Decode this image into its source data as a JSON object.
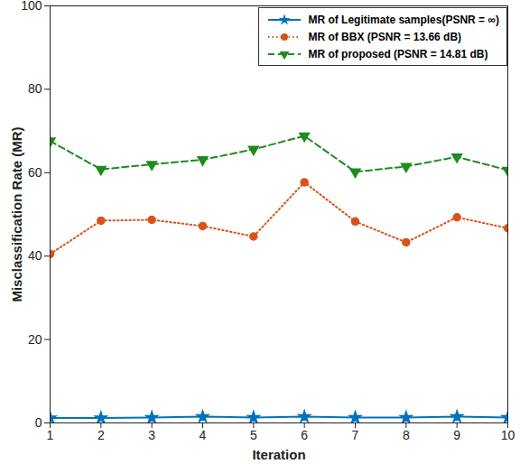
{
  "chart_data": {
    "type": "line",
    "x": [
      1,
      2,
      3,
      4,
      5,
      6,
      7,
      8,
      9,
      10
    ],
    "xlabel": "Iteration",
    "ylabel": "Misclassification Rate (MR)",
    "xlim": [
      1,
      10
    ],
    "xticks": [
      1,
      2,
      3,
      4,
      5,
      6,
      7,
      8,
      9,
      10
    ],
    "ylim": [
      0,
      100
    ],
    "yticks": [
      0,
      20,
      40,
      60,
      80,
      100
    ],
    "grid": false,
    "legend": "upper right",
    "series": [
      {
        "name": "MR of Legitimate samples(PSNR = ∞)",
        "color": "#0072bd",
        "marker": "star",
        "line_style": "solid",
        "values": [
          1.2,
          1.2,
          1.3,
          1.5,
          1.3,
          1.5,
          1.3,
          1.3,
          1.5,
          1.3
        ]
      },
      {
        "name": "MR of BBX (PSNR = 13.66 dB)",
        "color": "#d95319",
        "marker": "circle",
        "line_style": "dotted",
        "values": [
          40.5,
          48.5,
          48.7,
          47.2,
          44.7,
          57.7,
          48.3,
          43.3,
          49.3,
          46.7
        ]
      },
      {
        "name": "MR of proposed (PSNR = 14.81 dB)",
        "color": "#1e8c1e",
        "marker": "triangle-down",
        "line_style": "dashed",
        "values": [
          67.6,
          60.8,
          62.0,
          63.1,
          65.6,
          68.8,
          60.2,
          61.5,
          63.8,
          60.6
        ]
      }
    ]
  }
}
